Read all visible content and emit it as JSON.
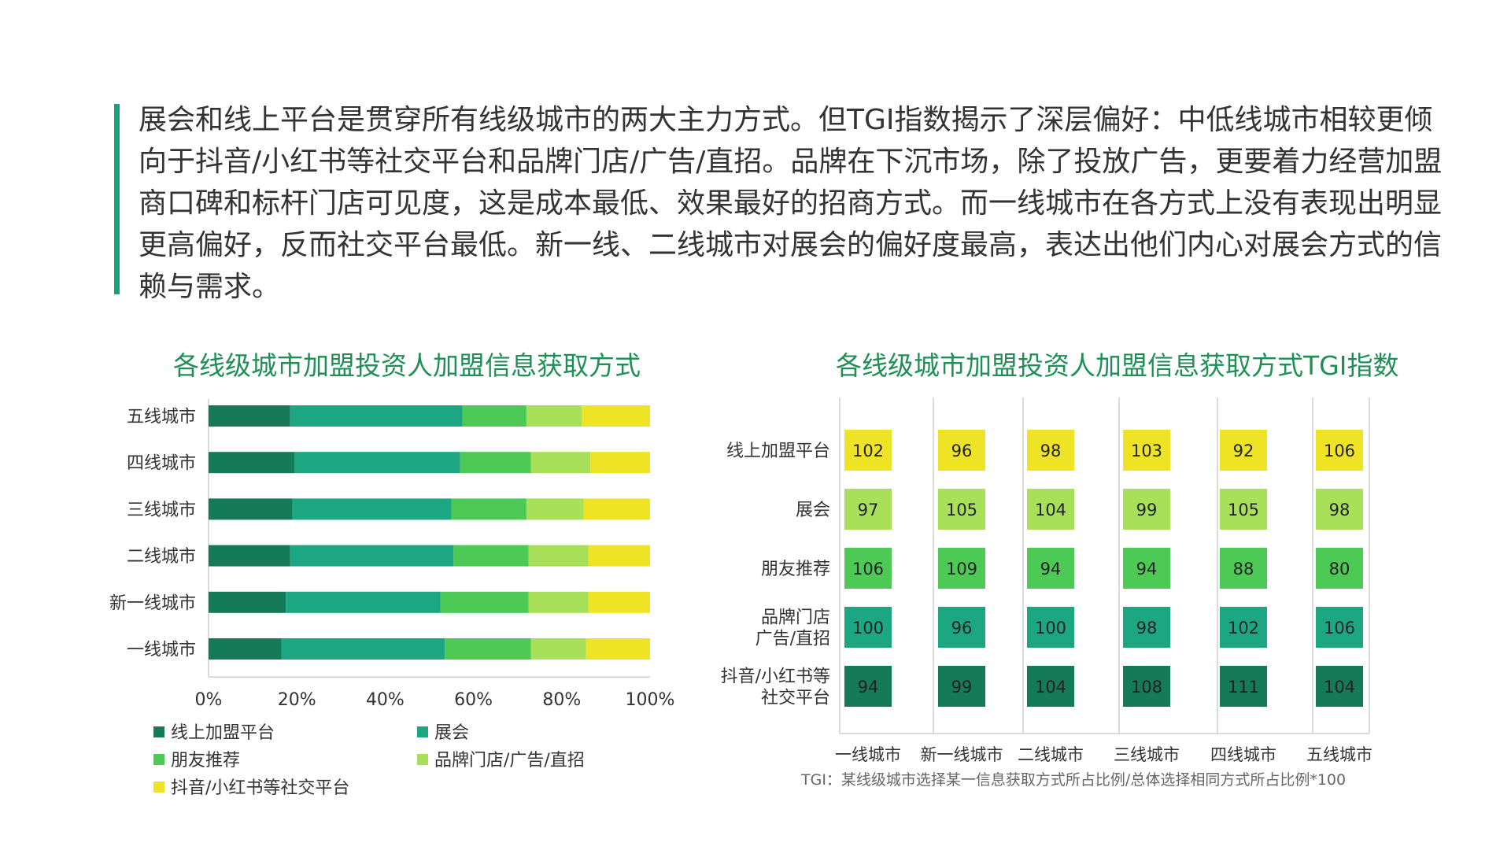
{
  "intro": {
    "text": "展会和线上平台是贯穿所有线级城市的两大主力方式。但TGI指数揭示了深层偏好：中低线城市相较更倾向于抖音/小红书等社交平台和品牌门店/广告/直招。品牌在下沉市场，除了投放广告，更要着力经营加盟商口碑和标杆门店可见度，这是成本最低、效果最好的招商方式。而一线城市在各方式上没有表现出明显更高偏好，反而社交平台最低。新一线、二线城市对展会的偏好度最高，表达出他们内心对展会方式的信赖与需求。"
  },
  "footnote": "TGI：某线级城市选择某一信息获取方式所占比例/总体选择相同方式所占比例*100",
  "colors": {
    "accent": "#1aa37a",
    "title": "#1f8f55",
    "series": [
      "#157a57",
      "#1ca682",
      "#4cca55",
      "#a9e05a",
      "#eee425"
    ]
  },
  "chart_data": [
    {
      "type": "bar",
      "orientation": "horizontal",
      "stacked": true,
      "title": "各线级城市加盟投资人加盟信息获取方式",
      "categories": [
        "五线城市",
        "四线城市",
        "三线城市",
        "二线城市",
        "新一线城市",
        "一线城市"
      ],
      "series": [
        {
          "name": "线上加盟平台",
          "values": [
            18.5,
            19.5,
            19.0,
            18.5,
            17.5,
            16.5
          ]
        },
        {
          "name": "展会",
          "values": [
            39.0,
            37.5,
            36.0,
            37.0,
            35.0,
            37.0
          ]
        },
        {
          "name": "朋友推荐",
          "values": [
            14.5,
            16.0,
            17.0,
            17.0,
            20.0,
            19.5
          ]
        },
        {
          "name": "品牌门店/广告/直招",
          "values": [
            12.5,
            13.5,
            13.0,
            13.5,
            13.5,
            12.5
          ]
        },
        {
          "name": "抖音/小红书等社交平台",
          "values": [
            15.5,
            13.5,
            15.0,
            14.0,
            14.0,
            14.5
          ]
        }
      ],
      "xlim": [
        0,
        100
      ],
      "xticks": [
        "0%",
        "20%",
        "40%",
        "60%",
        "80%",
        "100%"
      ],
      "legend_position": "bottom"
    },
    {
      "type": "heatmap",
      "title": "各线级城市加盟投资人加盟信息获取方式TGI指数",
      "columns": [
        "一线城市",
        "新一线城市",
        "二线城市",
        "三线城市",
        "四线城市",
        "五线城市"
      ],
      "rows": [
        {
          "label": "线上加盟平台",
          "values": [
            102,
            96,
            98,
            103,
            92,
            106
          ]
        },
        {
          "label": "展会",
          "values": [
            97,
            105,
            104,
            99,
            105,
            98
          ]
        },
        {
          "label": "朋友推荐",
          "values": [
            106,
            109,
            94,
            94,
            88,
            80
          ]
        },
        {
          "label": "品牌门店\n广告/直招",
          "values": [
            100,
            96,
            100,
            98,
            102,
            106
          ]
        },
        {
          "label": "抖音/小红书等\n社交平台",
          "values": [
            94,
            99,
            104,
            108,
            111,
            104
          ]
        }
      ]
    }
  ]
}
